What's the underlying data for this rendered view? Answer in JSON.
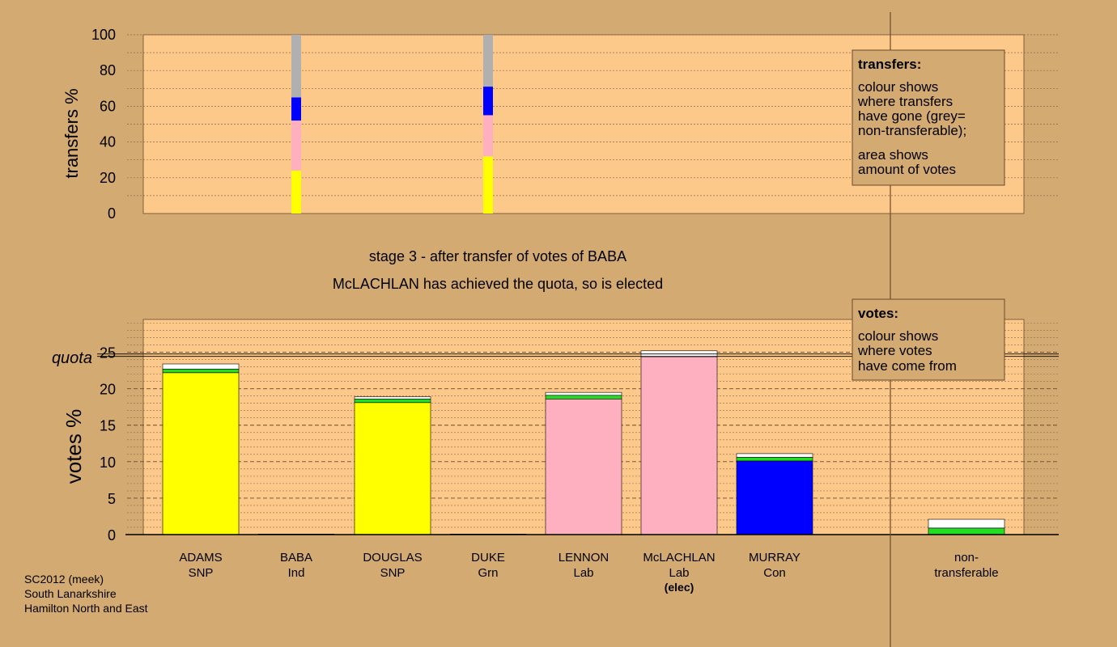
{
  "colors": {
    "background": "#d4aa73",
    "plot_bg": "#fdc98a",
    "snp": "#ffff00",
    "lab": "#ffb0c0",
    "con": "#0000ff",
    "grn": "#22dd22",
    "nontransferable": "#b0b0b0",
    "white": "#ffffff"
  },
  "chart_data": [
    {
      "type": "bar",
      "name": "transfers",
      "ylabel": "transfers %",
      "ylim": [
        0,
        100
      ],
      "yticks": [
        "0",
        "20",
        "40",
        "60",
        "80",
        "100"
      ],
      "bars": [
        {
          "candidate": "BABA",
          "segments": [
            {
              "party": "SNP",
              "color": "snp",
              "value": 24
            },
            {
              "party": "Lab",
              "color": "lab",
              "value": 28
            },
            {
              "party": "Con",
              "color": "con",
              "value": 13
            },
            {
              "party": "non-transferable",
              "color": "nontransferable",
              "value": 35
            }
          ]
        },
        {
          "candidate": "DUKE",
          "segments": [
            {
              "party": "SNP",
              "color": "snp",
              "value": 32
            },
            {
              "party": "Lab",
              "color": "lab",
              "value": 23
            },
            {
              "party": "Con",
              "color": "con",
              "value": 16
            },
            {
              "party": "non-transferable",
              "color": "nontransferable",
              "value": 29
            }
          ]
        }
      ]
    },
    {
      "type": "bar",
      "name": "votes",
      "ylabel": "votes %",
      "ylim": [
        0,
        29.5
      ],
      "yticks": [
        "0",
        "5",
        "10",
        "15",
        "20",
        "25"
      ],
      "quota": 24.6,
      "quota_label": "quota",
      "categories": [
        {
          "name": "ADAMS",
          "party": "SNP",
          "segments": [
            {
              "color": "snp",
              "value": 22.2
            },
            {
              "color": "grn",
              "value": 0.5
            },
            {
              "color": "white",
              "value": 0.7
            }
          ]
        },
        {
          "name": "BABA",
          "party": "Ind",
          "segments": []
        },
        {
          "name": "DOUGLAS",
          "party": "SNP",
          "segments": [
            {
              "color": "snp",
              "value": 18.1
            },
            {
              "color": "grn",
              "value": 0.5
            },
            {
              "color": "white",
              "value": 0.3
            }
          ]
        },
        {
          "name": "DUKE",
          "party": "Grn",
          "segments": []
        },
        {
          "name": "LENNON",
          "party": "Lab",
          "segments": [
            {
              "color": "lab",
              "value": 18.6
            },
            {
              "color": "grn",
              "value": 0.5
            },
            {
              "color": "white",
              "value": 0.4
            }
          ]
        },
        {
          "name": "McLACHLAN",
          "party": "Lab",
          "note": "(elec)",
          "segments": [
            {
              "color": "lab",
              "value": 24.4
            },
            {
              "color": "white",
              "value": 0.8
            }
          ]
        },
        {
          "name": "MURRAY",
          "party": "Con",
          "segments": [
            {
              "color": "con",
              "value": 10.1
            },
            {
              "color": "grn",
              "value": 0.5
            },
            {
              "color": "white",
              "value": 0.5
            }
          ]
        },
        {
          "name": "non-",
          "party": "transferable",
          "segments": [
            {
              "color": "grn",
              "value": 0.9
            },
            {
              "color": "white",
              "value": 1.2
            }
          ]
        }
      ]
    }
  ],
  "legend_transfers": {
    "title": "transfers:",
    "lines1": [
      "colour shows",
      "where transfers",
      "have gone (grey=",
      "non-transferable);"
    ],
    "lines2": [
      "area shows",
      "amount of votes"
    ]
  },
  "legend_votes": {
    "title": "votes:",
    "lines": [
      "colour shows",
      "where votes",
      "have come from"
    ]
  },
  "stage_title": "stage 3 - after transfer of votes of BABA",
  "stage_subtitle": "McLACHLAN has achieved the quota, so is elected",
  "footer": [
    "SC2012 (meek)",
    "South Lanarkshire",
    "Hamilton North and East"
  ]
}
